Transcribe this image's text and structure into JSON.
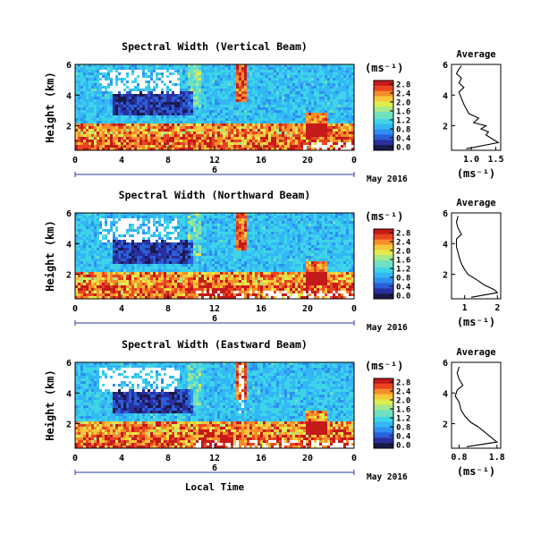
{
  "figure": {
    "date_label": "May 2016",
    "bottom_xlabel": "Local Time",
    "colors": {
      "axis": "#000000",
      "day_bar": "#2a3b9c",
      "missing": "#ffffff",
      "colormap": [
        "#1a1a4a",
        "#2b2f9e",
        "#2a5fd8",
        "#2e8ff0",
        "#33b7f5",
        "#3ed4e8",
        "#6fe0c0",
        "#a6e88a",
        "#e0ec4f",
        "#f7c73a",
        "#f58d2a",
        "#e84523",
        "#c51a1a"
      ]
    }
  },
  "chart_data": [
    {
      "type": "heatmap",
      "title": "Spectral Width (Vertical Beam)",
      "ylabel": "Height (km)",
      "xlim": [
        0,
        24
      ],
      "ylim": [
        0.4,
        6
      ],
      "xticks": [
        "0",
        "4",
        "8",
        "12",
        "16",
        "20",
        "0"
      ],
      "yticks": [
        "2",
        "4",
        "6"
      ],
      "day_marker": "6",
      "grid": false,
      "colorbar": {
        "unit": "(ms⁻¹)",
        "min": 0.0,
        "max": 2.8,
        "ticks": [
          "2.8",
          "2.4",
          "2.0",
          "1.6",
          "1.2",
          "0.8",
          "0.4",
          "0.0"
        ],
        "label_location": "right"
      },
      "profile": {
        "title": "Average",
        "xlabel": "(ms⁻¹)",
        "xticks": [
          "1.0",
          "1.5"
        ],
        "xlim": [
          0.6,
          1.6
        ],
        "ylim": [
          0.4,
          6
        ],
        "yticks": [
          "2",
          "4",
          "6"
        ],
        "points": [
          [
            0.9,
            0.5
          ],
          [
            1.55,
            0.9
          ],
          [
            1.45,
            1.1
          ],
          [
            1.3,
            1.4
          ],
          [
            1.35,
            1.6
          ],
          [
            1.2,
            1.8
          ],
          [
            1.3,
            2.0
          ],
          [
            1.05,
            2.2
          ],
          [
            1.15,
            2.5
          ],
          [
            0.95,
            2.8
          ],
          [
            0.9,
            3.1
          ],
          [
            0.85,
            3.4
          ],
          [
            0.8,
            3.8
          ],
          [
            0.75,
            4.2
          ],
          [
            0.85,
            4.5
          ],
          [
            0.75,
            4.8
          ],
          [
            0.8,
            5.1
          ],
          [
            0.7,
            5.4
          ],
          [
            0.75,
            5.7
          ],
          [
            0.8,
            5.9
          ]
        ]
      }
    },
    {
      "type": "heatmap",
      "title": "Spectral Width (Northward Beam)",
      "ylabel": "Height (km)",
      "xlim": [
        0,
        24
      ],
      "ylim": [
        0.4,
        6
      ],
      "xticks": [
        "0",
        "4",
        "8",
        "12",
        "16",
        "20",
        "0"
      ],
      "yticks": [
        "2",
        "4",
        "6"
      ],
      "day_marker": "6",
      "grid": false,
      "colorbar": {
        "unit": "(ms⁻¹)",
        "min": 0.0,
        "max": 2.8,
        "ticks": [
          "2.8",
          "2.4",
          "2.0",
          "1.6",
          "1.2",
          "0.8",
          "0.4",
          "0.0"
        ],
        "label_location": "right"
      },
      "profile": {
        "title": "Average",
        "xlabel": "(ms⁻¹)",
        "xticks": [
          "1",
          "2"
        ],
        "xlim": [
          0.6,
          2.1
        ],
        "ylim": [
          0.4,
          6
        ],
        "yticks": [
          "2",
          "4",
          "6"
        ],
        "points": [
          [
            1.2,
            0.5
          ],
          [
            2.0,
            0.8
          ],
          [
            1.9,
            1.0
          ],
          [
            1.6,
            1.3
          ],
          [
            1.4,
            1.6
          ],
          [
            1.1,
            2.0
          ],
          [
            1.0,
            2.3
          ],
          [
            0.9,
            2.7
          ],
          [
            0.85,
            3.0
          ],
          [
            0.8,
            3.4
          ],
          [
            0.75,
            3.8
          ],
          [
            0.75,
            4.3
          ],
          [
            0.9,
            4.6
          ],
          [
            0.8,
            5.0
          ],
          [
            0.75,
            5.4
          ],
          [
            0.8,
            5.8
          ]
        ]
      }
    },
    {
      "type": "heatmap",
      "title": "Spectral Width (Eastward Beam)",
      "ylabel": "Height (km)",
      "xlim": [
        0,
        24
      ],
      "ylim": [
        0.4,
        6
      ],
      "xticks": [
        "0",
        "4",
        "8",
        "12",
        "16",
        "20",
        "0"
      ],
      "yticks": [
        "2",
        "4",
        "6"
      ],
      "day_marker": "6",
      "grid": false,
      "colorbar": {
        "unit": "(ms⁻¹)",
        "min": 0.0,
        "max": 2.8,
        "ticks": [
          "2.8",
          "2.4",
          "2.0",
          "1.6",
          "1.2",
          "0.8",
          "0.4",
          "0.0"
        ],
        "label_location": "right"
      },
      "profile": {
        "title": "Average",
        "xlabel": "(ms⁻¹)",
        "xticks": [
          "0.8",
          "1.8"
        ],
        "xlim": [
          0.6,
          1.9
        ],
        "ylim": [
          0.4,
          6
        ],
        "yticks": [
          "2",
          "4",
          "6"
        ],
        "points": [
          [
            1.0,
            0.5
          ],
          [
            1.8,
            0.8
          ],
          [
            1.7,
            1.0
          ],
          [
            1.6,
            1.2
          ],
          [
            1.45,
            1.5
          ],
          [
            1.3,
            1.8
          ],
          [
            1.1,
            2.1
          ],
          [
            0.95,
            2.5
          ],
          [
            0.85,
            2.9
          ],
          [
            0.8,
            3.4
          ],
          [
            0.7,
            3.8
          ],
          [
            0.75,
            4.2
          ],
          [
            0.9,
            4.5
          ],
          [
            0.8,
            4.9
          ],
          [
            0.75,
            5.3
          ],
          [
            0.8,
            5.7
          ]
        ]
      }
    }
  ]
}
